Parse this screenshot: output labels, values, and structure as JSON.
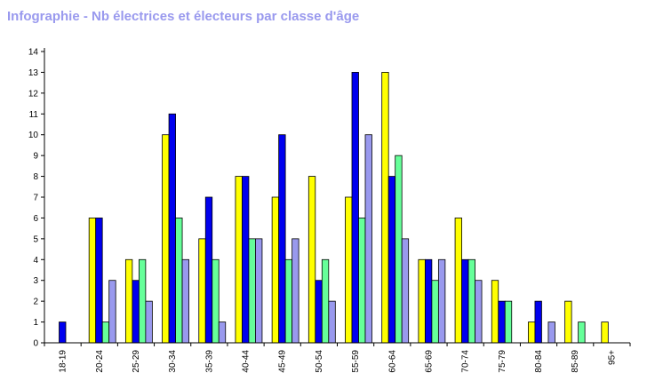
{
  "title": "Infographie - Nb électrices et électeurs par classe d'âge",
  "chart_data": {
    "type": "bar",
    "title": "Infographie - Nb électrices et électeurs par classe d'âge",
    "xlabel": "",
    "ylabel": "",
    "ylim": [
      0,
      14
    ],
    "yticks": [
      "0",
      "1",
      "2",
      "3",
      "4",
      "5",
      "6",
      "7",
      "8",
      "9",
      "10",
      "11",
      "12",
      "13",
      "14"
    ],
    "grid": false,
    "categories": [
      "18-19",
      "20-24",
      "25-29",
      "30-34",
      "35-39",
      "40-44",
      "45-49",
      "50-54",
      "55-59",
      "60-64",
      "65-69",
      "70-74",
      "75-79",
      "80-84",
      "85-89",
      "95+"
    ],
    "series": [
      {
        "color": "#ffff00",
        "values": [
          0,
          6,
          4,
          10,
          5,
          8,
          7,
          8,
          7,
          13,
          4,
          6,
          3,
          1,
          2,
          1
        ]
      },
      {
        "color": "#0000ee",
        "values": [
          1,
          6,
          3,
          11,
          7,
          8,
          10,
          3,
          13,
          8,
          4,
          4,
          2,
          2,
          0,
          0
        ]
      },
      {
        "color": "#66ff99",
        "values": [
          0,
          1,
          4,
          6,
          4,
          5,
          4,
          4,
          6,
          9,
          3,
          4,
          2,
          0,
          1,
          0
        ]
      },
      {
        "color": "#9999ee",
        "values": [
          0,
          3,
          2,
          4,
          1,
          5,
          5,
          2,
          10,
          5,
          4,
          3,
          0,
          1,
          0,
          0
        ]
      }
    ]
  }
}
